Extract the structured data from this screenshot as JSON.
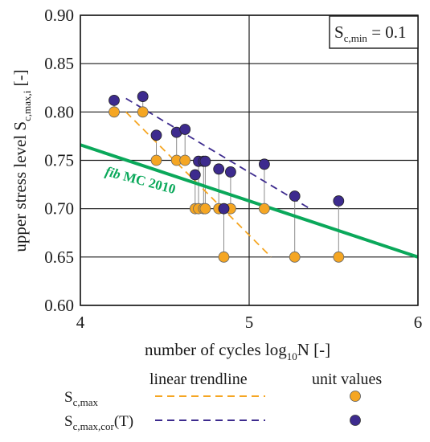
{
  "chart_data": {
    "type": "scatter",
    "xlabel": "number of cycles log10N [-]",
    "ylabel": "upper stress level Sc,max,i [-]",
    "xlim": [
      4,
      6
    ],
    "ylim": [
      0.6,
      0.9
    ],
    "x_ticks": [
      "4",
      "5",
      "6"
    ],
    "y_ticks": [
      "0.60",
      "0.65",
      "0.70",
      "0.75",
      "0.80",
      "0.85",
      "0.90"
    ],
    "grid": "major",
    "annotation": "Sc,min = 0.1",
    "annotation_parts": {
      "main": "S",
      "sub": "c,min",
      "rest": " = 0.1"
    },
    "curve": {
      "name": "fib MC 2010",
      "label_lead": "fib",
      "label_rest": " MC 2010",
      "color": "#0aa85a",
      "x": [
        4,
        6
      ],
      "y": [
        0.766,
        0.65
      ]
    },
    "series": [
      {
        "name": "Sc,max",
        "label_parts": {
          "main": "S",
          "sub": "c,max",
          "rest": ""
        },
        "color": "#f5a623",
        "x": [
          4.2,
          4.37,
          4.45,
          4.57,
          4.62,
          4.68,
          4.7,
          4.73,
          4.74,
          4.82,
          4.85,
          4.89,
          5.09,
          5.27,
          5.53
        ],
        "y": [
          0.8,
          0.8,
          0.75,
          0.75,
          0.75,
          0.7,
          0.7,
          0.7,
          0.7,
          0.7,
          0.65,
          0.7,
          0.7,
          0.65,
          0.65
        ],
        "trend": {
          "x": [
            4.27,
            5.13
          ],
          "y": [
            0.8,
            0.65
          ],
          "color": "#f5a623"
        }
      },
      {
        "name": "Sc,max,cor(T)",
        "label_parts": {
          "main": "S",
          "sub": "c,max,cor",
          "rest": "(T)"
        },
        "color": "#3d2b8e",
        "x": [
          4.2,
          4.37,
          4.45,
          4.57,
          4.62,
          4.68,
          4.7,
          4.73,
          4.74,
          4.82,
          4.85,
          4.89,
          5.09,
          5.27,
          5.53
        ],
        "y": [
          0.812,
          0.816,
          0.776,
          0.779,
          0.782,
          0.735,
          0.749,
          0.749,
          0.749,
          0.741,
          0.7,
          0.738,
          0.746,
          0.713,
          0.708
        ],
        "trend": {
          "x": [
            4.27,
            5.36
          ],
          "y": [
            0.814,
            0.7
          ],
          "color": "#3d2b8e"
        }
      }
    ],
    "legend": {
      "col_trend": "linear trendline",
      "col_unit": "unit values",
      "placement": "bottom"
    }
  }
}
